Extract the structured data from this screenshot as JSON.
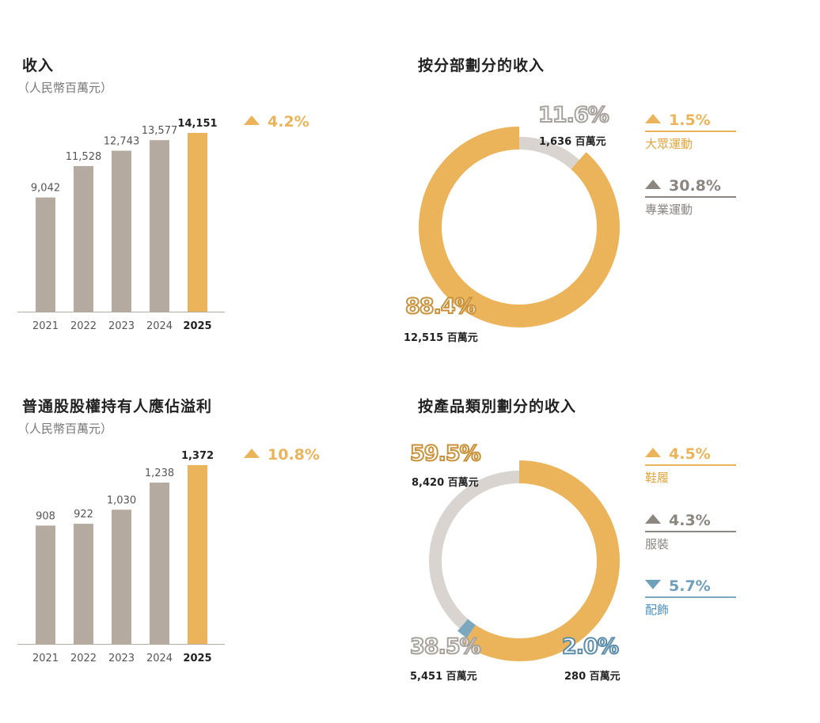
{
  "colors": {
    "gold": "#EBB45A",
    "grey_bar": "#B4AAA0",
    "grey_ring": "#D9D4CF",
    "grey_text": "#8C8680",
    "blue": "#7CA7BF",
    "blue_text": "#4B91C1"
  },
  "chart_data": [
    {
      "type": "bar",
      "title": "收入",
      "subtitle": "（人民幣百萬元）",
      "categories": [
        "2021",
        "2022",
        "2023",
        "2024",
        "2025"
      ],
      "values": [
        9042,
        11528,
        12743,
        13577,
        14151
      ],
      "value_labels": [
        "9,042",
        "11,528",
        "12,743",
        "13,577",
        "14,151"
      ],
      "highlight_index": 4,
      "change": "4.2%",
      "change_direction": "up"
    },
    {
      "type": "pie",
      "title": "按分部劃分的收入",
      "slices": [
        {
          "name": "大眾運動",
          "percent": 88.4,
          "percent_label": "88.4%",
          "value": 12515,
          "value_label": "12,515 百萬元",
          "change": "1.5%",
          "change_direction": "up",
          "color": "#EBB45A"
        },
        {
          "name": "專業運動",
          "percent": 11.6,
          "percent_label": "11.6%",
          "value": 1636,
          "value_label": "1,636 百萬元",
          "change": "30.8%",
          "change_direction": "up",
          "color": "#D9D4CF"
        }
      ]
    },
    {
      "type": "bar",
      "title": "普通股股權持有人應佔溢利",
      "subtitle": "（人民幣百萬元）",
      "categories": [
        "2021",
        "2022",
        "2023",
        "2024",
        "2025"
      ],
      "values": [
        908,
        922,
        1030,
        1238,
        1372
      ],
      "value_labels": [
        "908",
        "922",
        "1,030",
        "1,238",
        "1,372"
      ],
      "highlight_index": 4,
      "change": "10.8%",
      "change_direction": "up"
    },
    {
      "type": "pie",
      "title": "按產品類別劃分的收入",
      "slices": [
        {
          "name": "鞋履",
          "percent": 59.5,
          "percent_label": "59.5%",
          "value": 8420,
          "value_label": "8,420 百萬元",
          "change": "4.5%",
          "change_direction": "up",
          "color": "#EBB45A"
        },
        {
          "name": "配飾",
          "percent": 2.0,
          "percent_label": "2.0%",
          "value": 280,
          "value_label": "280 百萬元",
          "change": "5.7%",
          "change_direction": "down",
          "color": "#7CA7BF"
        },
        {
          "name": "服裝",
          "percent": 38.5,
          "percent_label": "38.5%",
          "value": 5451,
          "value_label": "5,451 百萬元",
          "change": "4.3%",
          "change_direction": "up",
          "color": "#D9D4CF"
        }
      ]
    }
  ]
}
